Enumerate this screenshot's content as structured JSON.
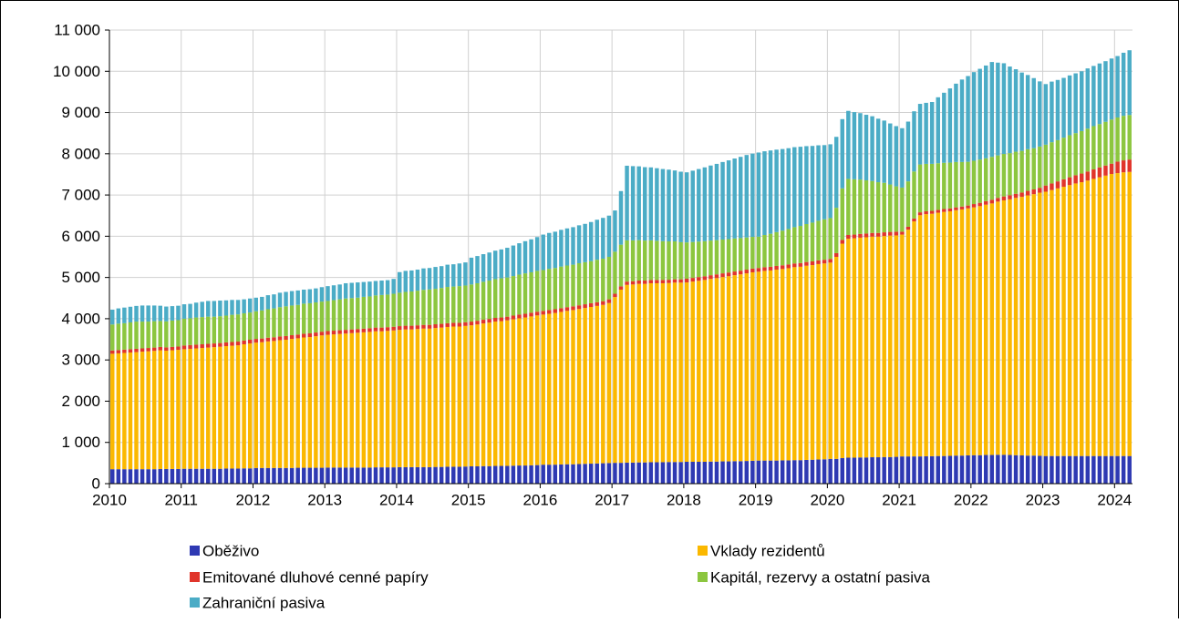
{
  "chart_data": {
    "type": "stacked_bar",
    "categories": [
      "2010",
      null,
      null,
      null,
      null,
      null,
      null,
      null,
      null,
      null,
      null,
      null,
      "2011",
      null,
      null,
      null,
      null,
      null,
      null,
      null,
      null,
      null,
      null,
      null,
      "2012",
      null,
      null,
      null,
      null,
      null,
      null,
      null,
      null,
      null,
      null,
      null,
      "2013",
      null,
      null,
      null,
      null,
      null,
      null,
      null,
      null,
      null,
      null,
      null,
      "2014",
      null,
      null,
      null,
      null,
      null,
      null,
      null,
      null,
      null,
      null,
      null,
      "2015",
      null,
      null,
      null,
      null,
      null,
      null,
      null,
      null,
      null,
      null,
      null,
      "2016",
      null,
      null,
      null,
      null,
      null,
      null,
      null,
      null,
      null,
      null,
      null,
      "2017",
      null,
      null,
      null,
      null,
      null,
      null,
      null,
      null,
      null,
      null,
      null,
      "2018",
      null,
      null,
      null,
      null,
      null,
      null,
      null,
      null,
      null,
      null,
      null,
      "2019",
      null,
      null,
      null,
      null,
      null,
      null,
      null,
      null,
      null,
      null,
      null,
      "2020",
      null,
      null,
      null,
      null,
      null,
      null,
      null,
      null,
      null,
      null,
      null,
      "2021",
      null,
      null,
      null,
      null,
      null,
      null,
      null,
      null,
      null,
      null,
      null,
      "2022",
      null,
      null,
      null,
      null,
      null,
      null,
      null,
      null,
      null,
      null,
      null,
      "2023",
      null,
      null,
      null,
      null,
      null,
      null,
      null,
      null,
      null,
      null,
      null,
      "2024",
      null,
      null
    ],
    "ylim": [
      0,
      11000
    ],
    "yticks": [
      0,
      {
        "value": 1000,
        "label": "1 000"
      },
      {
        "value": 2000,
        "label": "2 000"
      },
      {
        "value": 3000,
        "label": "3 000"
      },
      {
        "value": 4000,
        "label": "4 000"
      },
      {
        "value": 5000,
        "label": "5 000"
      },
      {
        "value": 6000,
        "label": "6 000"
      },
      {
        "value": 7000,
        "label": "7 000"
      },
      {
        "value": 8000,
        "label": "8 000"
      },
      {
        "value": 9000,
        "label": "9 000"
      },
      {
        "value": 10000,
        "label": "10 000"
      },
      {
        "value": 11000,
        "label": "11 000"
      }
    ],
    "grid": true,
    "series": [
      {
        "name": "Oběživo",
        "color": "#2e39b3",
        "values": [
          350,
          350,
          350,
          350,
          350,
          350,
          350,
          350,
          355,
          355,
          355,
          355,
          360,
          360,
          360,
          360,
          360,
          360,
          360,
          365,
          365,
          365,
          370,
          370,
          380,
          380,
          380,
          380,
          380,
          380,
          380,
          385,
          385,
          385,
          385,
          385,
          390,
          390,
          390,
          390,
          390,
          390,
          390,
          390,
          395,
          395,
          395,
          395,
          400,
          400,
          400,
          400,
          400,
          400,
          405,
          405,
          410,
          410,
          410,
          415,
          420,
          420,
          425,
          425,
          430,
          430,
          430,
          435,
          440,
          440,
          445,
          450,
          460,
          460,
          460,
          465,
          470,
          470,
          475,
          480,
          485,
          490,
          495,
          500,
          505,
          505,
          510,
          510,
          515,
          515,
          520,
          520,
          520,
          525,
          525,
          525,
          530,
          530,
          530,
          530,
          535,
          535,
          540,
          540,
          545,
          545,
          550,
          555,
          560,
          560,
          560,
          560,
          565,
          565,
          570,
          570,
          575,
          580,
          585,
          590,
          600,
          600,
          620,
          630,
          630,
          635,
          635,
          640,
          640,
          645,
          645,
          650,
          660,
          660,
          660,
          660,
          665,
          665,
          670,
          670,
          675,
          680,
          680,
          685,
          690,
          690,
          695,
          695,
          700,
          700,
          695,
          690,
          685,
          680,
          680,
          675,
          670,
          670,
          670,
          670,
          670,
          670,
          670,
          670,
          670,
          670,
          670,
          670,
          670,
          670,
          670
        ]
      },
      {
        "name": "Vklady rezidentů",
        "color": "#fbb800",
        "values": [
          2800,
          2810,
          2820,
          2830,
          2840,
          2850,
          2860,
          2870,
          2880,
          2870,
          2880,
          2890,
          2900,
          2910,
          2920,
          2930,
          2940,
          2950,
          2960,
          2970,
          2980,
          2990,
          3010,
          3030,
          3040,
          3050,
          3070,
          3080,
          3100,
          3110,
          3130,
          3140,
          3160,
          3170,
          3190,
          3210,
          3220,
          3230,
          3240,
          3250,
          3260,
          3270,
          3280,
          3290,
          3300,
          3300,
          3310,
          3320,
          3330,
          3340,
          3340,
          3350,
          3360,
          3360,
          3370,
          3380,
          3390,
          3400,
          3400,
          3410,
          3420,
          3440,
          3460,
          3480,
          3500,
          3510,
          3530,
          3550,
          3570,
          3590,
          3610,
          3630,
          3640,
          3660,
          3680,
          3700,
          3720,
          3740,
          3760,
          3780,
          3800,
          3820,
          3840,
          3880,
          4020,
          4200,
          4310,
          4320,
          4330,
          4330,
          4340,
          4340,
          4340,
          4340,
          4350,
          4350,
          4350,
          4370,
          4390,
          4410,
          4430,
          4450,
          4470,
          4490,
          4510,
          4530,
          4550,
          4570,
          4580,
          4600,
          4610,
          4630,
          4640,
          4660,
          4680,
          4690,
          4710,
          4720,
          4740,
          4750,
          4760,
          4900,
          5200,
          5310,
          5320,
          5330,
          5340,
          5350,
          5350,
          5360,
          5370,
          5370,
          5380,
          5500,
          5700,
          5850,
          5870,
          5880,
          5900,
          5920,
          5930,
          5950,
          5970,
          5990,
          6010,
          6040,
          6070,
          6100,
          6140,
          6170,
          6200,
          6240,
          6270,
          6310,
          6340,
          6380,
          6410,
          6450,
          6490,
          6530,
          6570,
          6610,
          6640,
          6680,
          6720,
          6760,
          6800,
          6840,
          6860,
          6880,
          6890
        ]
      },
      {
        "name": "Emitované dluhové cenné papíry",
        "color": "#e0352b",
        "values": [
          80,
          80,
          80,
          80,
          80,
          80,
          80,
          80,
          80,
          80,
          80,
          80,
          90,
          90,
          90,
          90,
          90,
          90,
          90,
          90,
          90,
          90,
          90,
          90,
          90,
          90,
          90,
          90,
          90,
          90,
          90,
          90,
          90,
          90,
          90,
          90,
          90,
          90,
          90,
          90,
          90,
          90,
          90,
          90,
          90,
          90,
          90,
          90,
          90,
          90,
          90,
          90,
          90,
          90,
          90,
          90,
          90,
          90,
          90,
          90,
          90,
          90,
          90,
          90,
          90,
          90,
          90,
          90,
          90,
          90,
          90,
          90,
          90,
          90,
          90,
          90,
          90,
          90,
          90,
          90,
          90,
          90,
          90,
          90,
          80,
          80,
          80,
          80,
          80,
          80,
          80,
          80,
          80,
          80,
          80,
          80,
          90,
          90,
          90,
          90,
          90,
          90,
          90,
          90,
          90,
          90,
          90,
          90,
          90,
          90,
          90,
          90,
          90,
          90,
          90,
          90,
          90,
          90,
          90,
          90,
          90,
          90,
          90,
          90,
          90,
          90,
          90,
          90,
          90,
          90,
          90,
          90,
          70,
          70,
          70,
          70,
          70,
          70,
          70,
          70,
          70,
          70,
          70,
          70,
          80,
          80,
          85,
          90,
          90,
          95,
          100,
          100,
          105,
          110,
          115,
          120,
          150,
          160,
          170,
          180,
          190,
          200,
          210,
          220,
          230,
          240,
          245,
          250,
          280,
          290,
          300
        ]
      },
      {
        "name": "Kapitál, rezervy a ostatní pasiva",
        "color": "#8cc63f",
        "values": [
          630,
          640,
          640,
          650,
          660,
          650,
          640,
          640,
          630,
          630,
          640,
          640,
          650,
          650,
          660,
          660,
          660,
          650,
          650,
          650,
          660,
          660,
          660,
          660,
          670,
          680,
          690,
          700,
          710,
          720,
          720,
          720,
          730,
          730,
          730,
          730,
          730,
          740,
          750,
          760,
          760,
          760,
          770,
          770,
          780,
          790,
          790,
          800,
          810,
          820,
          830,
          840,
          850,
          860,
          860,
          870,
          880,
          880,
          890,
          890,
          900,
          910,
          920,
          930,
          940,
          950,
          950,
          960,
          970,
          980,
          980,
          990,
          990,
          1000,
          1000,
          1010,
          1010,
          1010,
          1020,
          1020,
          1020,
          1030,
          1030,
          1030,
          1020,
          1010,
          1000,
          990,
          980,
          970,
          960,
          950,
          940,
          930,
          920,
          900,
          880,
          870,
          860,
          850,
          840,
          830,
          820,
          810,
          800,
          790,
          780,
          770,
          760,
          780,
          800,
          820,
          840,
          860,
          880,
          900,
          920,
          940,
          960,
          980,
          990,
          1100,
          1250,
          1360,
          1340,
          1320,
          1290,
          1260,
          1230,
          1200,
          1150,
          1100,
          1070,
          1100,
          1140,
          1160,
          1150,
          1140,
          1130,
          1120,
          1110,
          1100,
          1080,
          1060,
          1050,
          1050,
          1040,
          1040,
          1030,
          1030,
          1020,
          1020,
          1010,
          1010,
          1000,
          1000,
          990,
          1000,
          1000,
          1010,
          1020,
          1020,
          1030,
          1040,
          1050,
          1050,
          1060,
          1070,
          1070,
          1080,
          1080
        ]
      },
      {
        "name": "Zahraniční pasiva",
        "color": "#4bacc6",
        "values": [
          360,
          370,
          380,
          380,
          380,
          390,
          390,
          380,
          370,
          360,
          350,
          350,
          350,
          350,
          360,
          370,
          380,
          380,
          380,
          370,
          360,
          350,
          340,
          340,
          330,
          330,
          340,
          340,
          350,
          350,
          350,
          350,
          340,
          340,
          340,
          350,
          360,
          360,
          360,
          370,
          370,
          370,
          360,
          360,
          350,
          350,
          350,
          360,
          500,
          510,
          510,
          510,
          520,
          520,
          530,
          530,
          540,
          540,
          550,
          560,
          650,
          660,
          670,
          680,
          690,
          700,
          720,
          740,
          760,
          780,
          800,
          820,
          860,
          870,
          880,
          890,
          900,
          910,
          920,
          930,
          950,
          970,
          990,
          1000,
          1000,
          1300,
          1810,
          1800,
          1790,
          1780,
          1770,
          1760,
          1750,
          1740,
          1720,
          1710,
          1700,
          1730,
          1760,
          1790,
          1820,
          1850,
          1880,
          1910,
          1940,
          1970,
          2000,
          2020,
          2040,
          2030,
          2020,
          2000,
          1980,
          1960,
          1940,
          1920,
          1890,
          1860,
          1830,
          1800,
          1790,
          1720,
          1680,
          1650,
          1630,
          1610,
          1590,
          1570,
          1540,
          1510,
          1480,
          1460,
          1440,
          1450,
          1460,
          1470,
          1480,
          1500,
          1600,
          1700,
          1800,
          1900,
          2000,
          2080,
          2150,
          2200,
          2250,
          2300,
          2250,
          2200,
          2100,
          2000,
          1900,
          1800,
          1700,
          1580,
          1470,
          1470,
          1460,
          1450,
          1450,
          1450,
          1450,
          1460,
          1460,
          1470,
          1470,
          1480,
          1490,
          1530,
          1570
        ]
      }
    ]
  }
}
